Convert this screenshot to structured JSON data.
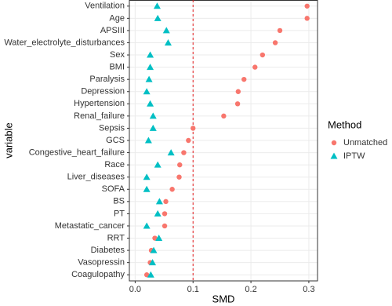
{
  "chart_data": {
    "type": "dot",
    "x_label": "SMD",
    "y_label": "variable",
    "categories": [
      "Ventilation",
      "Age",
      "APSIII",
      "Water_electrolyte_disturbances",
      "Sex",
      "BMI",
      "Paralysis",
      "Depression",
      "Hypertension",
      "Renal_failure",
      "Sepsis",
      "GCS",
      "Congestive_heart_failure",
      "Race",
      "Liver_diseases",
      "SOFA",
      "BS",
      "PT",
      "Metastatic_cancer",
      "RRT",
      "Diabetes",
      "Vasopressin",
      "Coagulopathy"
    ],
    "series": [
      {
        "name": "Unmatched",
        "color": "#F8766D",
        "marker": "circle",
        "values": [
          0.297,
          0.297,
          0.25,
          0.242,
          0.22,
          0.207,
          0.188,
          0.178,
          0.177,
          0.153,
          0.1,
          0.092,
          0.084,
          0.077,
          0.076,
          0.064,
          0.053,
          0.051,
          0.051,
          0.034,
          0.028,
          0.026,
          0.02
        ]
      },
      {
        "name": "IPTW",
        "color": "#00BFC4",
        "marker": "triangle",
        "values": [
          0.038,
          0.039,
          0.054,
          0.057,
          0.026,
          0.026,
          0.024,
          0.02,
          0.026,
          0.031,
          0.031,
          0.023,
          0.062,
          0.039,
          0.02,
          0.02,
          0.042,
          0.039,
          0.02,
          0.041,
          0.032,
          0.03,
          0.027
        ]
      }
    ],
    "xlim": [
      -0.01,
      0.315
    ],
    "xticks": [
      {
        "value": 0,
        "label": "0.0"
      },
      0.1,
      0.2,
      0.3
    ],
    "reference_line": 0.1,
    "legend_title": "Method",
    "grid": true
  }
}
